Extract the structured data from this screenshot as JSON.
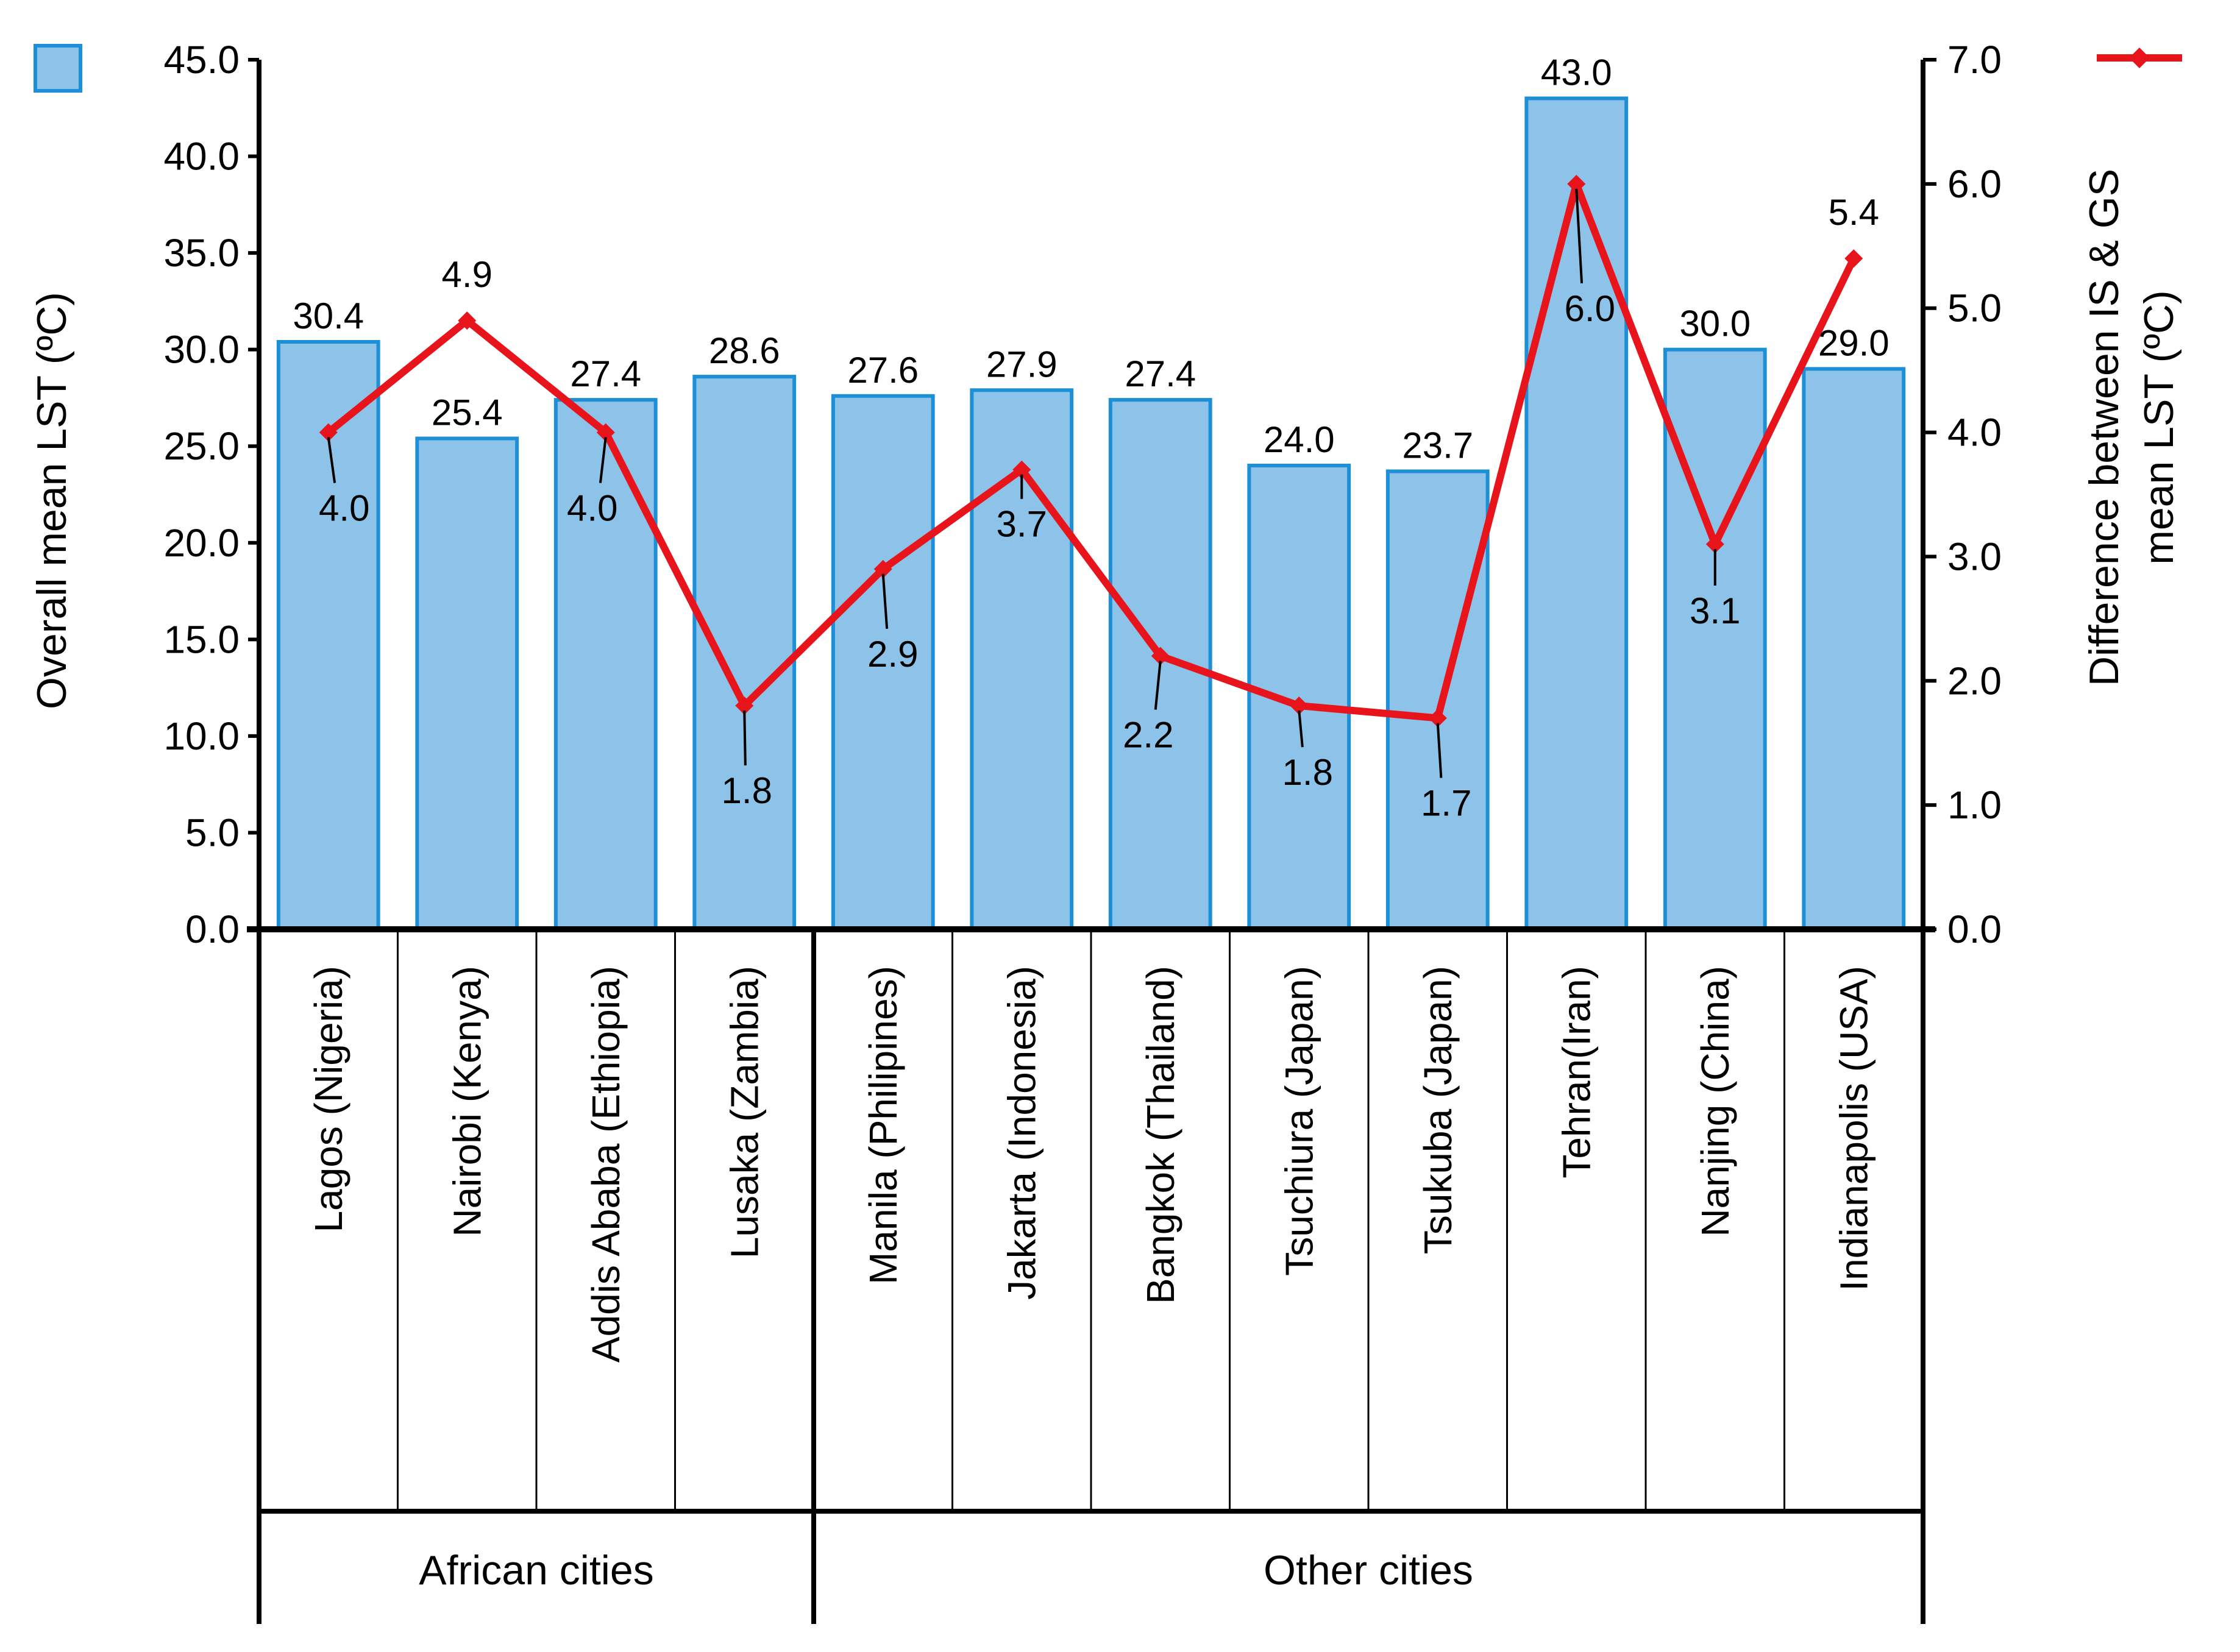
{
  "chart_data": {
    "type": "bar+line",
    "categories": [
      "Lagos (Nigeria)",
      "Nairobi (Kenya)",
      "Addis Ababa (Ethiopia)",
      "Lusaka (Zambia)",
      "Manila (Philipines)",
      "Jakarta (Indonesia)",
      "Bangkok (Thailand)",
      "Tsuchiura (Japan)",
      "Tsukuba (Japan)",
      "Tehran(Iran)",
      "Nanjing (China)",
      "Indianapolis (USA)"
    ],
    "groups": [
      {
        "label": "African cities",
        "count": 4
      },
      {
        "label": "Other cities",
        "count": 8
      }
    ],
    "series": [
      {
        "name": "Overall mean LST",
        "type": "bar",
        "axis": "left",
        "color": "#8dc3e8",
        "edge_color": "#1c8fd6",
        "values": [
          30.4,
          25.4,
          27.4,
          28.6,
          27.6,
          27.9,
          27.4,
          24.0,
          23.7,
          43.0,
          30.0,
          29.0
        ],
        "labels": [
          "30.4",
          "25.4",
          "27.4",
          "28.6",
          "27.6",
          "27.9",
          "27.4",
          "24.0",
          "23.7",
          "43.0",
          "30.0",
          "29.0"
        ]
      },
      {
        "name": "Difference between IS & GS mean LST",
        "type": "line",
        "axis": "right",
        "color": "#e8141c",
        "values": [
          4.0,
          4.9,
          4.0,
          1.8,
          2.9,
          3.7,
          2.2,
          1.8,
          1.7,
          6.0,
          3.1,
          5.4
        ],
        "labels": [
          "4.0",
          "4.9",
          "4.0",
          "1.8",
          "2.9",
          "3.7",
          "2.2",
          "1.8",
          "1.7",
          "6.0",
          "3.1",
          "5.4"
        ]
      }
    ],
    "y_left": {
      "label": "Overall mean LST (ºC)",
      "ylim": [
        0,
        45
      ],
      "ticks": [
        "0.0",
        "5.0",
        "10.0",
        "15.0",
        "20.0",
        "25.0",
        "30.0",
        "35.0",
        "40.0",
        "45.0"
      ]
    },
    "y_right": {
      "label_line1": "Difference between IS & GS",
      "label_line2": "mean LST (ºC)",
      "ylim": [
        0,
        7
      ],
      "ticks": [
        "0.0",
        "1.0",
        "2.0",
        "3.0",
        "4.0",
        "5.0",
        "6.0",
        "7.0"
      ]
    },
    "legend": {
      "placement": "top-left and top-right corners"
    }
  }
}
